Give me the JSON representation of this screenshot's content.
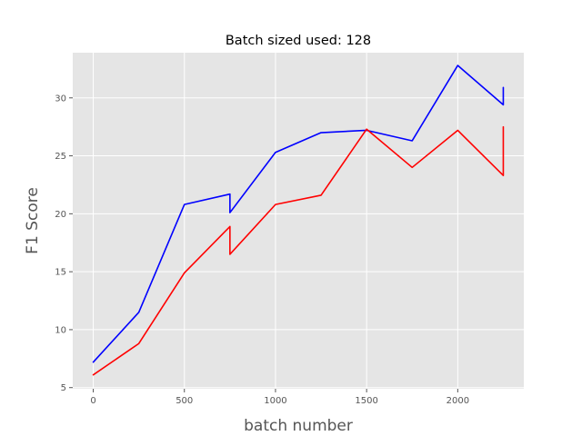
{
  "chart_data": {
    "type": "line",
    "title": "Batch sized used: 128",
    "xlabel": "batch number",
    "ylabel": "F1 Score",
    "xlim": [
      -112.5,
      2362.5
    ],
    "ylim": [
      4.9,
      33.9
    ],
    "xticks": [
      0,
      500,
      1000,
      1500,
      2000
    ],
    "yticks": [
      5,
      10,
      15,
      20,
      25,
      30
    ],
    "grid": true,
    "legend": "none",
    "series": [
      {
        "color": "#0000ff",
        "x": [
          0,
          250,
          500,
          750,
          750,
          1000,
          1250,
          1500,
          1750,
          2000,
          2250,
          2250
        ],
        "y": [
          7.2,
          11.5,
          20.8,
          21.7,
          20.1,
          25.3,
          27.0,
          27.2,
          26.3,
          32.8,
          29.4,
          30.9
        ]
      },
      {
        "color": "#ff0000",
        "x": [
          0,
          250,
          500,
          750,
          750,
          1000,
          1250,
          1500,
          1750,
          2000,
          2250,
          2250
        ],
        "y": [
          6.1,
          8.8,
          14.9,
          18.9,
          16.5,
          20.8,
          21.6,
          27.3,
          24.0,
          27.2,
          23.3,
          27.5
        ]
      }
    ]
  }
}
